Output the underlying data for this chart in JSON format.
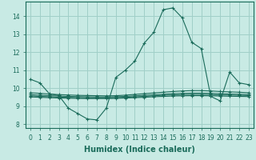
{
  "xlabel": "Humidex (Indice chaleur)",
  "ylabel": "",
  "background_color": "#c8eae4",
  "grid_color": "#a0cfc8",
  "line_color": "#1a6b5a",
  "xlim": [
    -0.5,
    23.5
  ],
  "ylim": [
    7.8,
    14.8
  ],
  "yticks": [
    8,
    9,
    10,
    11,
    12,
    13,
    14
  ],
  "xticks": [
    0,
    1,
    2,
    3,
    4,
    5,
    6,
    7,
    8,
    9,
    10,
    11,
    12,
    13,
    14,
    15,
    16,
    17,
    18,
    19,
    20,
    21,
    22,
    23
  ],
  "xtick_labels": [
    "0",
    "1",
    "2",
    "3",
    "4",
    "5",
    "6",
    "7",
    "8",
    "9",
    "10",
    "11",
    "12",
    "13",
    "14",
    "15",
    "16",
    "17",
    "18",
    "19",
    "20",
    "21",
    "22",
    "23"
  ],
  "lines": [
    {
      "x": [
        0,
        1,
        2,
        3,
        4,
        5,
        6,
        7,
        8,
        9,
        10,
        11,
        12,
        13,
        14,
        15,
        16,
        17,
        18,
        19,
        20,
        21,
        22,
        23
      ],
      "y": [
        10.5,
        10.3,
        9.7,
        9.6,
        8.9,
        8.6,
        8.3,
        8.25,
        8.9,
        10.6,
        11.0,
        11.5,
        12.5,
        13.1,
        14.35,
        14.45,
        13.9,
        12.55,
        12.2,
        9.55,
        9.3,
        10.9,
        10.3,
        10.2
      ]
    },
    {
      "x": [
        0,
        1,
        2,
        3,
        4,
        5,
        6,
        7,
        8,
        9,
        10,
        11,
        12,
        13,
        14,
        15,
        16,
        17,
        18,
        19,
        20,
        21,
        22,
        23
      ],
      "y": [
        9.75,
        9.72,
        9.68,
        9.65,
        9.63,
        9.61,
        9.6,
        9.59,
        9.58,
        9.59,
        9.62,
        9.66,
        9.7,
        9.74,
        9.78,
        9.82,
        9.85,
        9.87,
        9.87,
        9.85,
        9.82,
        9.8,
        9.78,
        9.75
      ]
    },
    {
      "x": [
        0,
        1,
        2,
        3,
        4,
        5,
        6,
        7,
        8,
        9,
        10,
        11,
        12,
        13,
        14,
        15,
        16,
        17,
        18,
        19,
        20,
        21,
        22,
        23
      ],
      "y": [
        9.65,
        9.62,
        9.59,
        9.57,
        9.55,
        9.54,
        9.53,
        9.52,
        9.52,
        9.53,
        9.55,
        9.58,
        9.61,
        9.64,
        9.67,
        9.7,
        9.72,
        9.73,
        9.73,
        9.72,
        9.7,
        9.68,
        9.67,
        9.65
      ]
    },
    {
      "x": [
        0,
        1,
        2,
        3,
        4,
        5,
        6,
        7,
        8,
        9,
        10,
        11,
        12,
        13,
        14,
        15,
        16,
        17,
        18,
        19,
        20,
        21,
        22,
        23
      ],
      "y": [
        9.58,
        9.55,
        9.53,
        9.51,
        9.5,
        9.48,
        9.47,
        9.47,
        9.47,
        9.48,
        9.5,
        9.52,
        9.55,
        9.58,
        9.61,
        9.63,
        9.65,
        9.66,
        9.66,
        9.65,
        9.63,
        9.62,
        9.61,
        9.6
      ]
    },
    {
      "x": [
        0,
        1,
        2,
        3,
        4,
        5,
        6,
        7,
        8,
        9,
        10,
        11,
        12,
        13,
        14,
        15,
        16,
        17,
        18,
        19,
        20,
        21,
        22,
        23
      ],
      "y": [
        9.52,
        9.5,
        9.48,
        9.46,
        9.45,
        9.44,
        9.43,
        9.43,
        9.43,
        9.44,
        9.46,
        9.48,
        9.5,
        9.53,
        9.55,
        9.57,
        9.58,
        9.59,
        9.59,
        9.58,
        9.57,
        9.56,
        9.55,
        9.54
      ]
    }
  ],
  "marker": "+",
  "markersize": 3,
  "linewidth": 0.8,
  "fontsize_ticks": 5.5,
  "fontsize_xlabel": 7.0
}
